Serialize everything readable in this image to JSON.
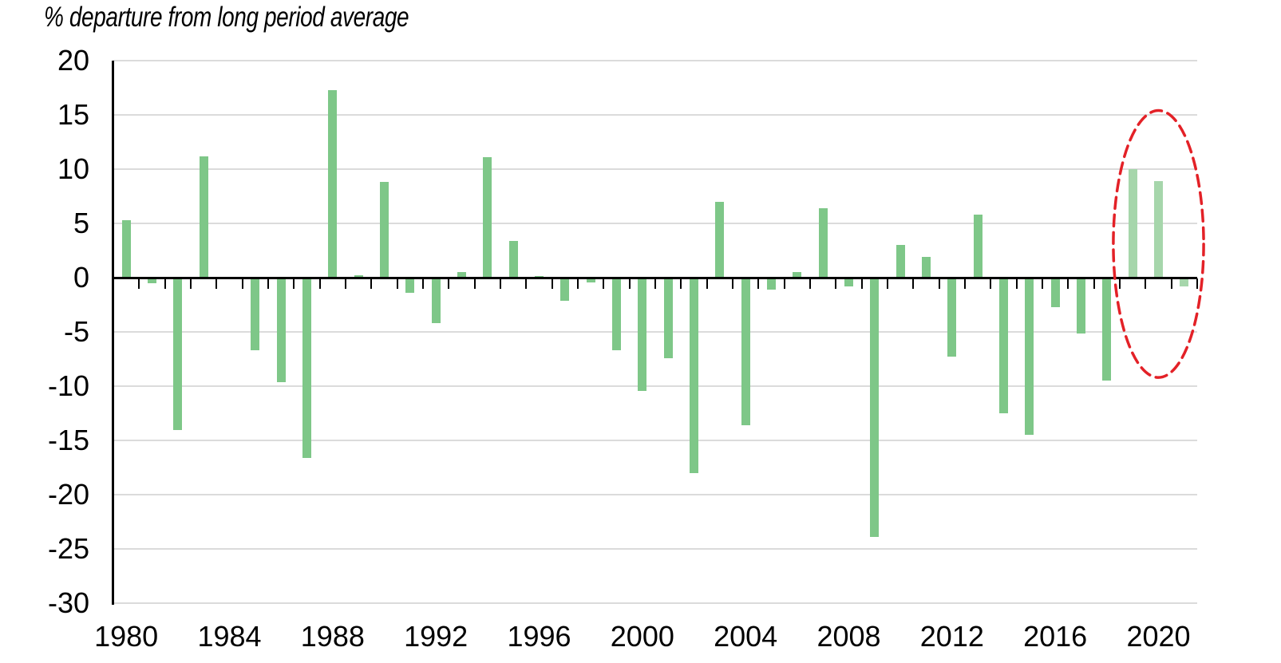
{
  "page": {
    "background": "#FFFFFF"
  },
  "chart_data": {
    "type": "bar",
    "title": "% departure from long period average",
    "xlabel": "",
    "ylabel": "",
    "ylim": [
      -30,
      20
    ],
    "yticks": [
      20,
      15,
      10,
      5,
      0,
      -5,
      -10,
      -15,
      -20,
      -25,
      -30
    ],
    "x_tick_labels": [
      "1980",
      "1984",
      "1988",
      "1992",
      "1996",
      "2000",
      "2004",
      "2008",
      "2012",
      "2016",
      "2020"
    ],
    "grid": "horizontal",
    "legend": "none",
    "categories": [
      1980,
      1981,
      1982,
      1983,
      1984,
      1985,
      1986,
      1987,
      1988,
      1989,
      1990,
      1991,
      1992,
      1993,
      1994,
      1995,
      1996,
      1997,
      1998,
      1999,
      2000,
      2001,
      2002,
      2003,
      2004,
      2005,
      2006,
      2007,
      2008,
      2009,
      2010,
      2011,
      2012,
      2013,
      2014,
      2015,
      2016,
      2017,
      2018,
      2019,
      2020,
      2021
    ],
    "values": [
      5.3,
      -0.4,
      -13.9,
      11.2,
      0,
      -6.6,
      -9.5,
      -16.5,
      17.3,
      0.2,
      8.8,
      -1.3,
      -4.1,
      0.5,
      11.1,
      3.4,
      0.1,
      -2.0,
      -0.3,
      -6.6,
      -10.3,
      -7.3,
      -17.9,
      7.0,
      -13.5,
      -1.0,
      0.5,
      6.4,
      -0.7,
      -23.8,
      3.0,
      1.9,
      -7.2,
      5.8,
      -12.4,
      -14.4,
      -2.6,
      -5.0,
      -9.4,
      10.0,
      8.9,
      -0.7
    ],
    "bar_color": "#7EC788",
    "highlight_bar_color": "#A6D6AB",
    "gridline_color": "#DBDBDB",
    "axis_color": "#000000",
    "annotation": {
      "shape": "dashed-ellipse",
      "stroke_color": "#E32127",
      "highlighted_years": [
        2019,
        2020,
        2021
      ],
      "center_year": 2020,
      "center_value": 3.1,
      "radius_years": 1.75,
      "radius_value": 12.3
    }
  }
}
